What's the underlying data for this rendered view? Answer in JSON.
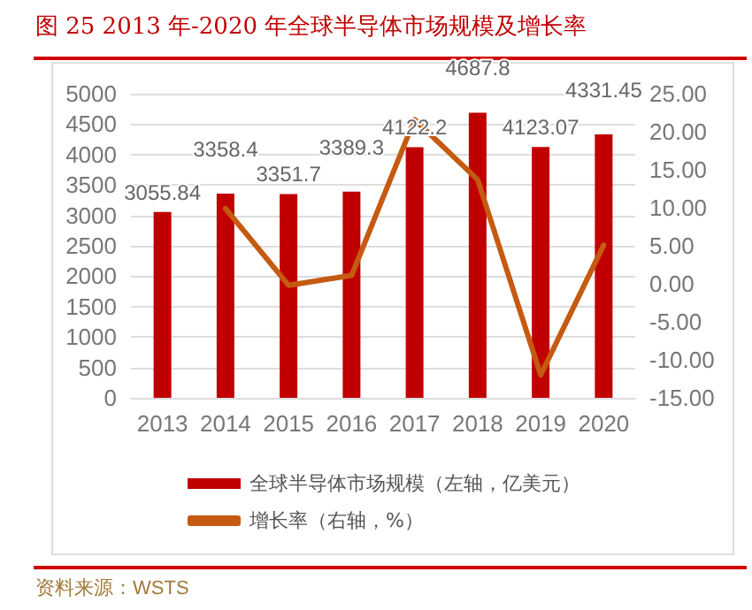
{
  "chart_data": {
    "type": "bar",
    "title": "图 25  2013 年-2020 年全球半导体市场规模及增长率",
    "categories": [
      "2013",
      "2014",
      "2015",
      "2016",
      "2017",
      "2018",
      "2019",
      "2020"
    ],
    "series": [
      {
        "name": "全球半导体市场规模（左轴，亿美元）",
        "type": "bar",
        "color": "#c00000",
        "values": [
          3055.84,
          3358.4,
          3351.7,
          3389.3,
          4122.2,
          4687.8,
          4123.07,
          4331.45
        ],
        "value_labels": [
          "3055.84",
          "3358.4",
          "3351.7",
          "3389.3",
          "4122.2",
          "4687.8",
          "4123.07",
          "4331.45"
        ]
      },
      {
        "name": "增长率（右轴，%）",
        "type": "line",
        "axis": "y2",
        "color": "#c55a11",
        "values": [
          null,
          9.9,
          -0.2,
          1.1,
          21.6,
          13.7,
          -12.0,
          5.1
        ]
      }
    ],
    "ylim": [
      0,
      5000
    ],
    "yticks": [
      0,
      500,
      1000,
      1500,
      2000,
      2500,
      3000,
      3500,
      4000,
      4500,
      5000
    ],
    "y2lim": [
      -15,
      25
    ],
    "y2ticks": [
      {
        "value": -15,
        "label": "-15.00"
      },
      {
        "value": -10,
        "label": "-10.00"
      },
      {
        "value": -5,
        "label": "-5.00"
      },
      {
        "value": 0,
        "label": "0.00"
      },
      {
        "value": 5,
        "label": "5.00"
      },
      {
        "value": 10,
        "label": "10.00"
      },
      {
        "value": 15,
        "label": "15.00"
      },
      {
        "value": 20,
        "label": "20.00"
      },
      {
        "value": 25,
        "label": "25.00"
      }
    ],
    "grid": "y",
    "legend": "bottom",
    "marker": "none",
    "line_style": "solid",
    "annotations": [
      "资料来源：WSTS"
    ]
  }
}
